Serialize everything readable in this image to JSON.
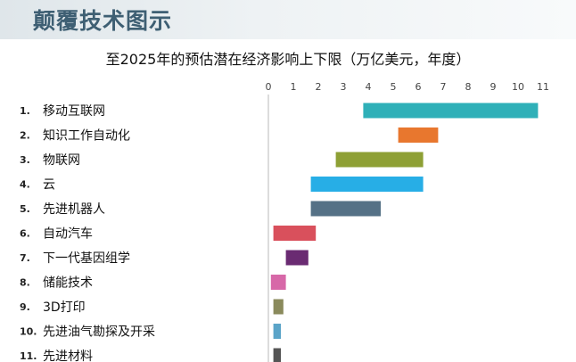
{
  "header": {
    "title": "颠覆技术图示"
  },
  "chart_data": {
    "type": "bar",
    "orientation": "horizontal-floating-range",
    "title": "至2025年的预估潜在经济影响上下限（万亿美元，年度）",
    "xlim": [
      0,
      11
    ],
    "xticks": [
      0,
      1,
      2,
      3,
      4,
      5,
      6,
      7,
      8,
      9,
      10,
      11
    ],
    "grid": false,
    "categories": [
      {
        "num": "1.",
        "name": "移动互联网",
        "low": 3.8,
        "high": 10.8,
        "color": "#2fb0b8"
      },
      {
        "num": "2.",
        "name": "知识工作自动化",
        "low": 5.2,
        "high": 6.8,
        "color": "#e8772e"
      },
      {
        "num": "3.",
        "name": "物联网",
        "low": 2.7,
        "high": 6.2,
        "color": "#8ea035"
      },
      {
        "num": "4.",
        "name": "云",
        "low": 1.7,
        "high": 6.2,
        "color": "#27aee6"
      },
      {
        "num": "5.",
        "name": "先进机器人",
        "low": 1.7,
        "high": 4.5,
        "color": "#557186"
      },
      {
        "num": "6.",
        "name": "自动汽车",
        "low": 0.2,
        "high": 1.9,
        "color": "#d9505c"
      },
      {
        "num": "7.",
        "name": "下一代基因组学",
        "low": 0.7,
        "high": 1.6,
        "color": "#6a2b72"
      },
      {
        "num": "8.",
        "name": "储能技术",
        "low": 0.1,
        "high": 0.7,
        "color": "#d768a8"
      },
      {
        "num": "9.",
        "name": "3D打印",
        "low": 0.2,
        "high": 0.6,
        "color": "#8a8a5c"
      },
      {
        "num": "10.",
        "name": "先进油气勘探及开采",
        "low": 0.2,
        "high": 0.5,
        "color": "#5ba4c8"
      },
      {
        "num": "11.",
        "name": "先进材料",
        "low": 0.2,
        "high": 0.5,
        "color": "#555555"
      }
    ]
  }
}
